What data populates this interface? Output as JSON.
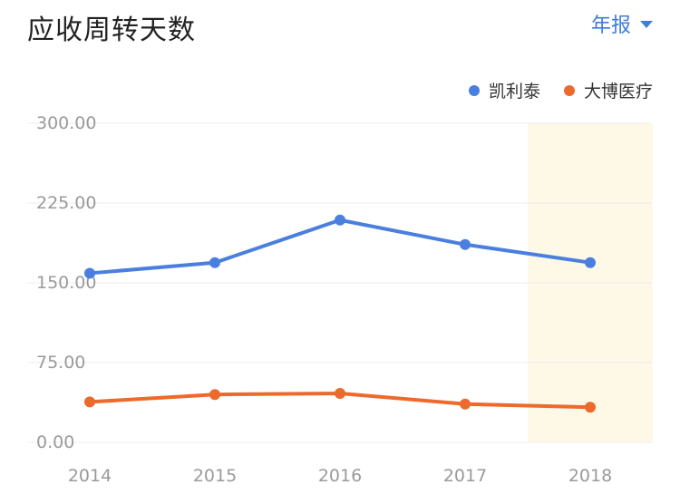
{
  "header": {
    "title": "应收周转天数",
    "period_label": "年报"
  },
  "colors": {
    "series_1": "#4a7fe0",
    "series_2": "#ec6a2c",
    "highlight": "#fdf9e6",
    "grid": "#ececec"
  },
  "chart_data": {
    "type": "line",
    "title": "应收周转天数",
    "x": [
      "2014",
      "2015",
      "2016",
      "2017",
      "2018"
    ],
    "y_ticks": [
      "300.00",
      "225.00",
      "150.00",
      "75.00",
      "0.00"
    ],
    "ylim": [
      0,
      300
    ],
    "grid": true,
    "legend_position": "top-right",
    "highlighted_category": "2018",
    "series": [
      {
        "name": "凯利泰",
        "values": [
          159,
          169,
          209,
          186,
          169
        ]
      },
      {
        "name": "大博医疗",
        "values": [
          38,
          45,
          46,
          36,
          33
        ]
      }
    ]
  }
}
